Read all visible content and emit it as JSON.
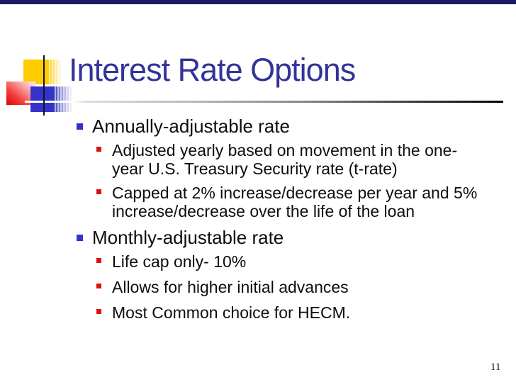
{
  "slide": {
    "title": "Interest Rate Options",
    "page_number": "11",
    "colors": {
      "top_bar": "#1b1b62",
      "title_text": "#333399",
      "level1_bullet": "#3333cc",
      "level2_bullet": "#dd1111",
      "body_text": "#0d0d0d"
    },
    "bullets": [
      {
        "level": 1,
        "text": "Annually-adjustable rate"
      },
      {
        "level": 2,
        "text": "Adjusted yearly based on movement in the one-\nyear U.S. Treasury Security rate (t-rate)"
      },
      {
        "level": 2,
        "text": "Capped at 2% increase/decrease per year and 5%\nincrease/decrease over the life of the loan"
      },
      {
        "level": 1,
        "text": "Monthly-adjustable rate"
      },
      {
        "level": 2,
        "text": "Life cap only- 10%"
      },
      {
        "level": 2,
        "text": "Allows for higher initial advances"
      },
      {
        "level": 2,
        "text": "Most Common choice for HECM."
      }
    ]
  }
}
